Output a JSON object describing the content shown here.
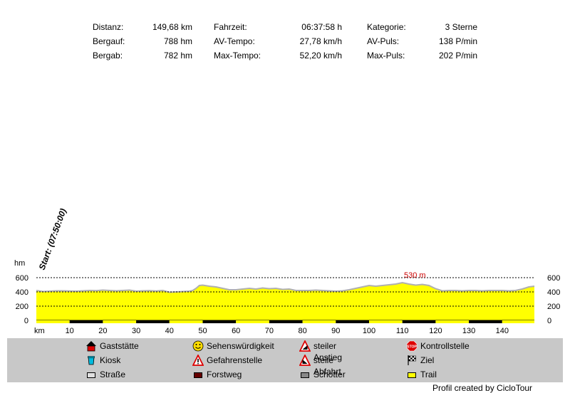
{
  "stats": [
    {
      "label": "Distanz:",
      "value": "149,68 km"
    },
    {
      "label": "Bergauf:",
      "value": "788 hm"
    },
    {
      "label": "Bergab:",
      "value": "782 hm"
    },
    {
      "label": "Fahrzeit:",
      "value": "06:37:58 h"
    },
    {
      "label": "AV-Tempo:",
      "value": "27,78 km/h"
    },
    {
      "label": "Max-Tempo:",
      "value": "52,20 km/h"
    },
    {
      "label": "Kategorie:",
      "value": "3 Sterne"
    },
    {
      "label": "AV-Puls:",
      "value": "138 P/min"
    },
    {
      "label": "Max-Puls:",
      "value": "202 P/min"
    }
  ],
  "chart": {
    "start_label": "Start: (07:50:00)",
    "max_label": "530 m",
    "y_unit": "hm",
    "x_unit": "km",
    "y_ticks": [
      "600",
      "400",
      "200",
      "0"
    ],
    "x_ticks": [
      "10",
      "20",
      "30",
      "40",
      "50",
      "60",
      "70",
      "80",
      "90",
      "100",
      "110",
      "120",
      "130",
      "140"
    ]
  },
  "chart_data": {
    "type": "area",
    "title": "",
    "xlabel": "km",
    "ylabel": "hm",
    "xlim": [
      0,
      149.68
    ],
    "ylim": [
      0,
      600
    ],
    "grid": true,
    "max_annotation": {
      "x": 110,
      "y": 530,
      "label": "530 m"
    },
    "x": [
      0,
      2,
      4,
      6,
      8,
      10,
      12,
      14,
      16,
      18,
      20,
      22,
      24,
      26,
      28,
      30,
      32,
      34,
      36,
      38,
      40,
      42,
      44,
      46,
      47,
      48,
      49,
      50,
      52,
      54,
      56,
      58,
      60,
      62,
      64,
      66,
      68,
      70,
      72,
      74,
      76,
      78,
      80,
      82,
      84,
      86,
      88,
      90,
      92,
      94,
      96,
      98,
      100,
      102,
      104,
      106,
      108,
      110,
      112,
      114,
      116,
      118,
      120,
      122,
      124,
      126,
      128,
      130,
      132,
      134,
      136,
      138,
      140,
      142,
      144,
      146,
      148,
      149.68
    ],
    "y": [
      420,
      405,
      410,
      415,
      415,
      412,
      410,
      415,
      420,
      418,
      425,
      420,
      415,
      420,
      425,
      410,
      415,
      418,
      412,
      420,
      395,
      400,
      405,
      410,
      420,
      450,
      490,
      495,
      480,
      470,
      450,
      430,
      430,
      440,
      450,
      440,
      455,
      445,
      450,
      435,
      440,
      420,
      420,
      420,
      425,
      420,
      415,
      410,
      415,
      430,
      450,
      470,
      490,
      480,
      490,
      500,
      510,
      530,
      510,
      495,
      505,
      490,
      445,
      415,
      420,
      420,
      415,
      420,
      420,
      415,
      420,
      420,
      420,
      415,
      420,
      440,
      470,
      480
    ],
    "surface_segments": [
      {
        "from": 0,
        "to": 10,
        "type": "Trail"
      },
      {
        "from": 10,
        "to": 20,
        "type": "Forstweg"
      },
      {
        "from": 20,
        "to": 30,
        "type": "Trail"
      },
      {
        "from": 30,
        "to": 40,
        "type": "Forstweg"
      },
      {
        "from": 40,
        "to": 50,
        "type": "Trail"
      },
      {
        "from": 50,
        "to": 60,
        "type": "Forstweg"
      },
      {
        "from": 60,
        "to": 70,
        "type": "Trail"
      },
      {
        "from": 70,
        "to": 80,
        "type": "Forstweg"
      },
      {
        "from": 80,
        "to": 90,
        "type": "Trail"
      },
      {
        "from": 90,
        "to": 100,
        "type": "Forstweg"
      },
      {
        "from": 100,
        "to": 110,
        "type": "Trail"
      },
      {
        "from": 110,
        "to": 120,
        "type": "Forstweg"
      },
      {
        "from": 120,
        "to": 130,
        "type": "Trail"
      },
      {
        "from": 130,
        "to": 140,
        "type": "Forstweg"
      },
      {
        "from": 140,
        "to": 149.68,
        "type": "Trail"
      }
    ],
    "colors": {
      "fill": "#ffff00",
      "outline": "#b0b0b0",
      "grid": "#000000",
      "max_label": "#cc0000"
    }
  },
  "legend": [
    {
      "label": "Gaststätte",
      "icon": "house-icon"
    },
    {
      "label": "Sehenswürdigkeit",
      "icon": "smiley-icon"
    },
    {
      "label": "steiler Anstieg",
      "icon": "steep-climb-icon"
    },
    {
      "label": "Kontrollstelle",
      "icon": "stop-sign-icon"
    },
    {
      "label": "Kiosk",
      "icon": "cup-icon"
    },
    {
      "label": "Gefahrenstelle",
      "icon": "danger-sign-icon"
    },
    {
      "label": "steile Abfahrt",
      "icon": "steep-descent-icon"
    },
    {
      "label": "Ziel",
      "icon": "checkered-flag-icon"
    },
    {
      "label": "Straße",
      "icon": "road-swatch-icon",
      "color": "#e0e0e0"
    },
    {
      "label": "Forstweg",
      "icon": "forest-path-swatch-icon",
      "color": "#660000"
    },
    {
      "label": "Schotter",
      "icon": "gravel-swatch-icon",
      "color": "#888888"
    },
    {
      "label": "Trail",
      "icon": "trail-swatch-icon",
      "color": "#ffff00"
    }
  ],
  "footer": "Profil created by CicloTour"
}
